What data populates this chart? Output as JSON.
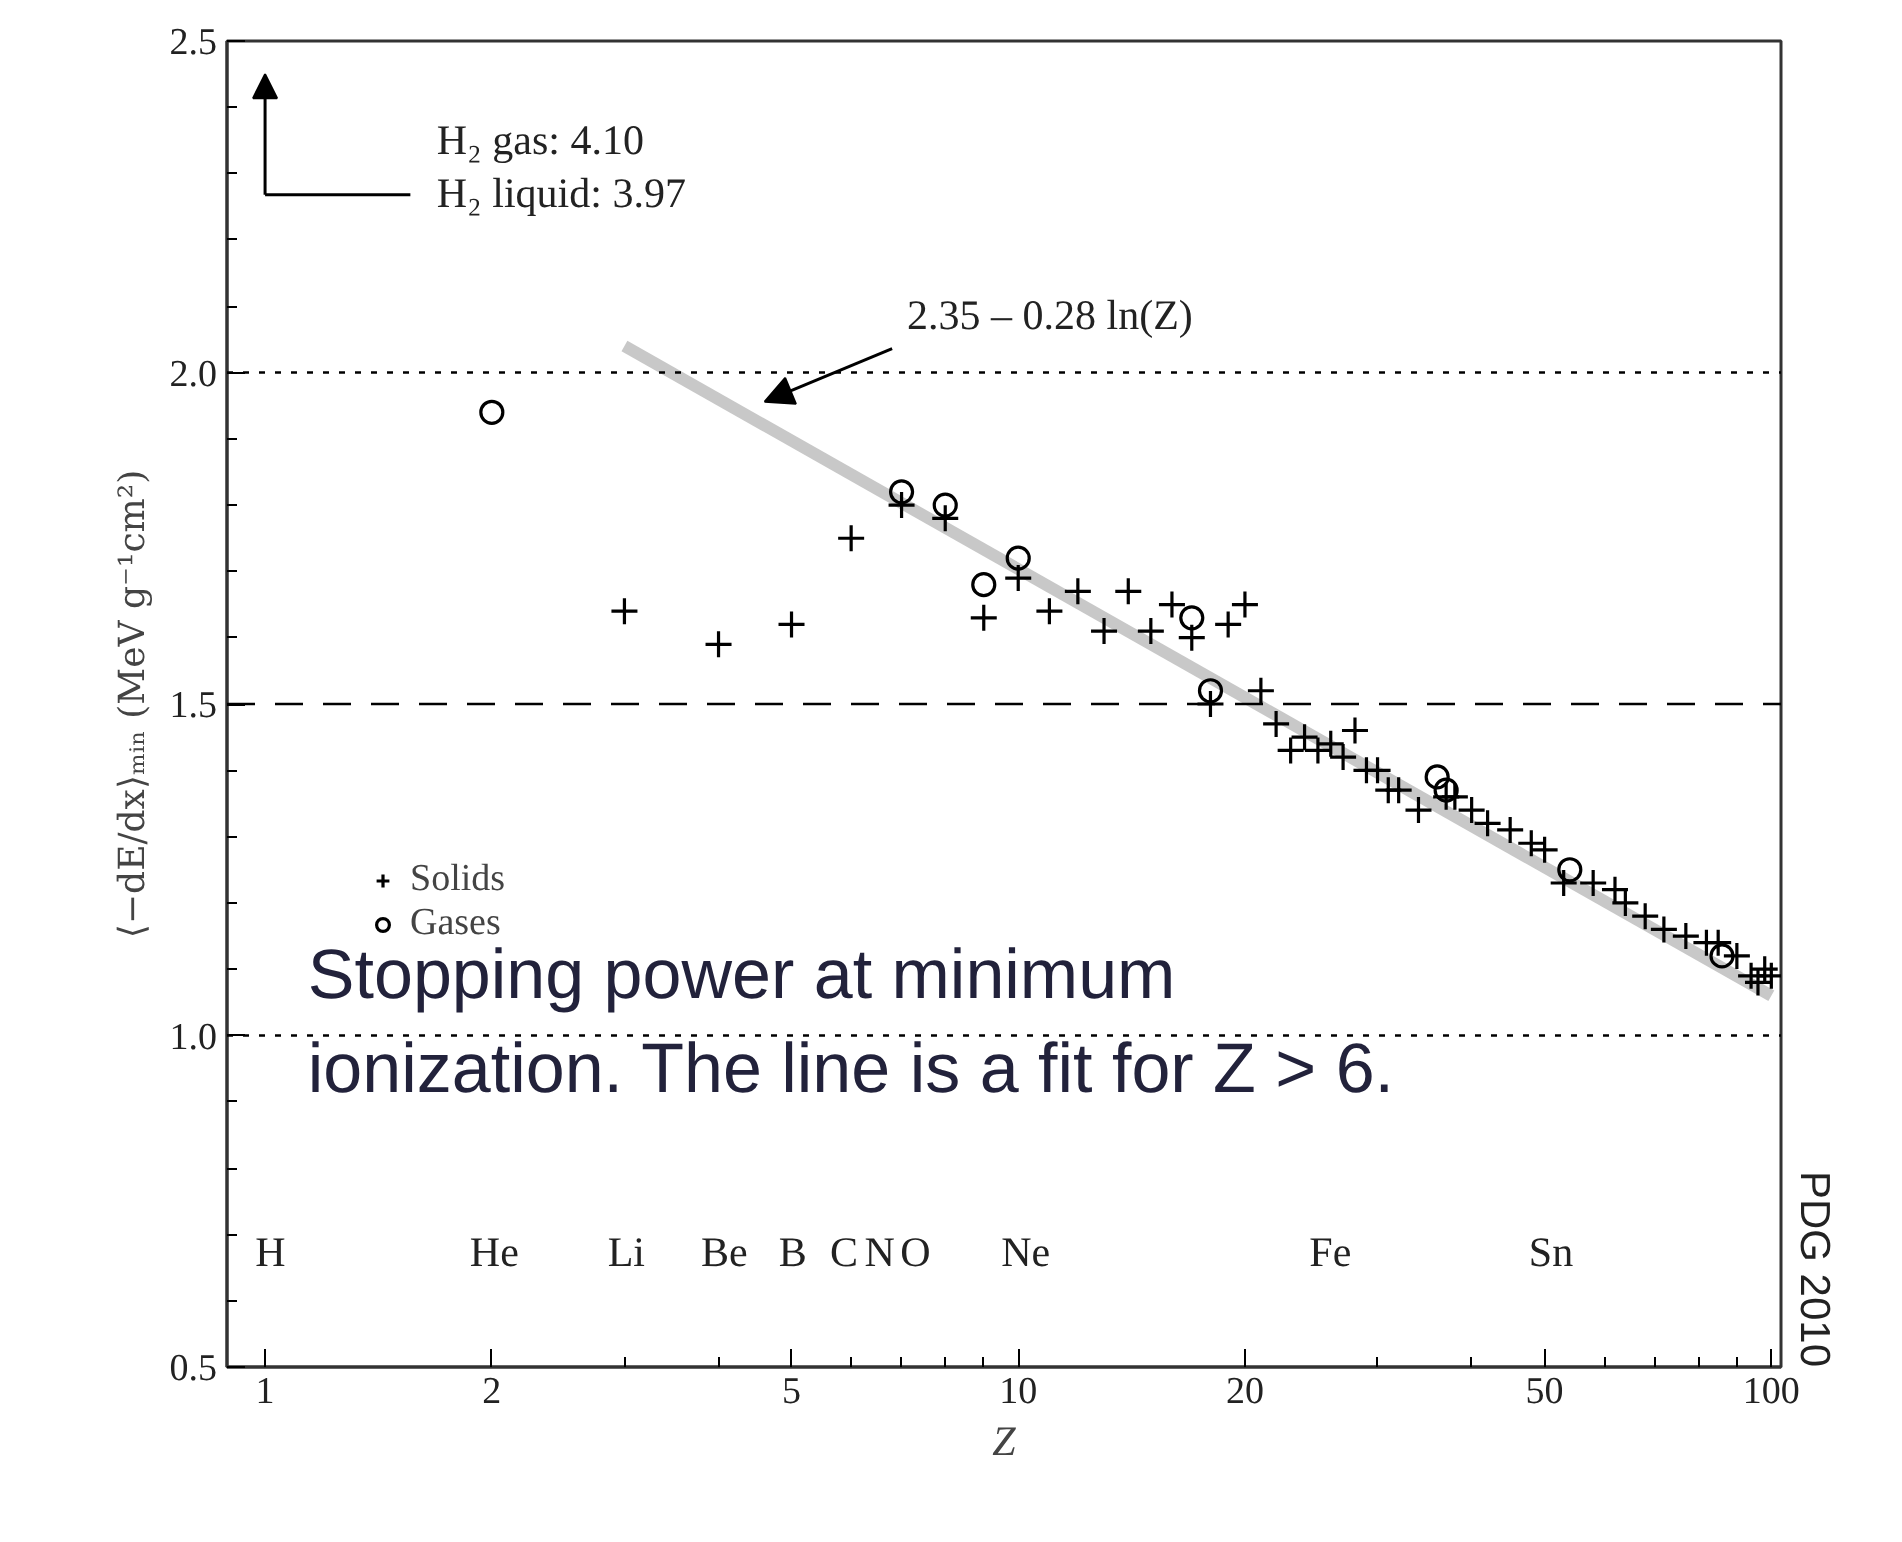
{
  "chart_data": {
    "type": "scatter",
    "xlabel": "Z",
    "ylabel": "⟨−dE/dx⟩ₘᵢₙ (MeV g⁻¹cm²)",
    "log": "x",
    "xlim": [
      0.89,
      103
    ],
    "ylim": [
      0.5,
      2.5
    ],
    "xticks": [
      1,
      2,
      {
        "value": 3,
        "label": null
      },
      {
        "value": 4,
        "label": null
      },
      5,
      {
        "value": 6,
        "label": null
      },
      {
        "value": 7,
        "label": null
      },
      {
        "value": 8,
        "label": null
      },
      {
        "value": 9,
        "label": null
      },
      10,
      20,
      {
        "value": 30,
        "label": null
      },
      {
        "value": 40,
        "label": null
      },
      50,
      {
        "value": 60,
        "label": null
      },
      {
        "value": 70,
        "label": null
      },
      {
        "value": 80,
        "label": null
      },
      {
        "value": 90,
        "label": null
      },
      100
    ],
    "yticks": [
      0.5,
      {
        "value": 0.6,
        "label": null
      },
      {
        "value": 0.7,
        "label": null
      },
      {
        "value": 0.8,
        "label": null
      },
      {
        "value": 0.9,
        "label": null
      },
      {
        "value": 1,
        "label": "1.0"
      },
      {
        "value": 1.1,
        "label": null
      },
      {
        "value": 1.2,
        "label": null
      },
      {
        "value": 1.3,
        "label": null
      },
      {
        "value": 1.4,
        "label": null
      },
      1.5,
      {
        "value": 1.6,
        "label": null
      },
      {
        "value": 1.7,
        "label": null
      },
      {
        "value": 1.8,
        "label": null
      },
      {
        "value": 1.9,
        "label": null
      },
      {
        "value": 2,
        "label": "2.0"
      },
      {
        "value": 2.1,
        "label": null
      },
      {
        "value": 2.2,
        "label": null
      },
      {
        "value": 2.3,
        "label": null
      },
      {
        "value": 2.4,
        "label": null
      },
      2.5
    ],
    "grid": false,
    "legend": "left",
    "series": [
      {
        "name": "Solids",
        "color": "#000000",
        "marker": "cross",
        "x": [
          3,
          4,
          5,
          6,
          7,
          8,
          9,
          10,
          11,
          12,
          13,
          14,
          15,
          16,
          17,
          18,
          19,
          20,
          21,
          22,
          23,
          24,
          25,
          26,
          27,
          28,
          29,
          30,
          31,
          32,
          34,
          37,
          38,
          40,
          42,
          45,
          48,
          50,
          53,
          58,
          62,
          64,
          68,
          72,
          77,
          82,
          85,
          90,
          94,
          96,
          98,
          100
        ],
        "values": [
          1.64,
          1.59,
          1.62,
          1.75,
          1.8,
          1.78,
          1.63,
          1.69,
          1.64,
          1.67,
          1.61,
          1.67,
          1.61,
          1.65,
          1.6,
          1.5,
          1.62,
          1.65,
          1.52,
          1.47,
          1.43,
          1.45,
          1.43,
          1.44,
          1.42,
          1.46,
          1.4,
          1.4,
          1.37,
          1.37,
          1.34,
          1.36,
          1.36,
          1.34,
          1.32,
          1.31,
          1.29,
          1.28,
          1.23,
          1.23,
          1.22,
          1.2,
          1.18,
          1.16,
          1.15,
          1.14,
          1.14,
          1.12,
          1.09,
          1.08,
          1.1,
          1.09
        ]
      },
      {
        "name": "Gases",
        "color": "#000000",
        "marker": "circle",
        "x": [
          2,
          7,
          8,
          9,
          10,
          17,
          18,
          36,
          37,
          54,
          86
        ],
        "values": [
          1.94,
          1.82,
          1.8,
          1.68,
          1.72,
          1.63,
          1.52,
          1.39,
          1.37,
          1.25,
          1.12
        ]
      },
      {
        "type": "line",
        "color": "#c8c8c8",
        "marker": "none",
        "x": [
          3,
          100
        ],
        "values": [
          2.04,
          1.06
        ]
      }
    ],
    "ref_lines": [
      {
        "axis": "y",
        "value": 2,
        "color": "#000000",
        "line_style": "dotted"
      },
      {
        "axis": "y",
        "value": 1.5,
        "color": "#000000",
        "line_style": "dashed"
      },
      {
        "axis": "y",
        "value": 1,
        "color": "#000000",
        "line_style": "dotted"
      }
    ],
    "annotations": [
      "H₂ gas:     4.10",
      "H₂ liquid: 3.97",
      "Stopping power at minimum\nionization. The line is a fit for Z > 6.",
      "PDG 2010",
      "2.35 – 0.28 ln(Z)",
      "H",
      "He",
      "Li",
      "Be",
      "B",
      "C",
      "N",
      "O",
      "Ne",
      "Fe",
      "Sn"
    ]
  }
}
